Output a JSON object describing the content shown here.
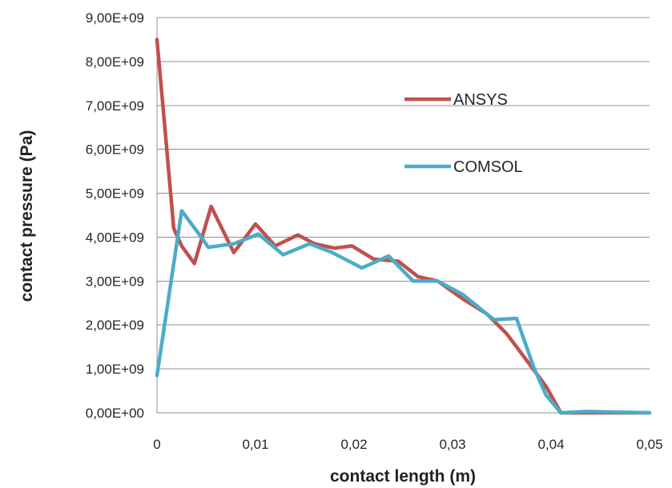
{
  "chart_data": {
    "type": "line",
    "title": "",
    "xlabel": "contact length (m)",
    "ylabel": "contact pressure (Pa)",
    "xlim": [
      0,
      0.05
    ],
    "ylim": [
      0,
      9000000000
    ],
    "x_ticks": [
      0,
      0.01,
      0.02,
      0.03,
      0.04,
      0.05
    ],
    "x_tick_labels": [
      "0",
      "0,01",
      "0,02",
      "0,03",
      "0,04",
      "0,05"
    ],
    "y_ticks": [
      0,
      1000000000,
      2000000000,
      3000000000,
      4000000000,
      5000000000,
      6000000000,
      7000000000,
      8000000000,
      9000000000
    ],
    "y_tick_labels": [
      "0,00E+00",
      "1,00E+09",
      "2,00E+09",
      "3,00E+09",
      "4,00E+09",
      "5,00E+09",
      "6,00E+09",
      "7,00E+09",
      "8,00E+09",
      "9,00E+09"
    ],
    "grid": true,
    "legend_position": "right",
    "series": [
      {
        "name": "ANSYS",
        "color": "#c0504d",
        "points": [
          [
            0.0,
            8500000000
          ],
          [
            0.0008,
            6500000000
          ],
          [
            0.0017,
            4200000000
          ],
          [
            0.0025,
            3800000000
          ],
          [
            0.0038,
            3400000000
          ],
          [
            0.0055,
            4700000000
          ],
          [
            0.0078,
            3650000000
          ],
          [
            0.01,
            4300000000
          ],
          [
            0.012,
            3800000000
          ],
          [
            0.0143,
            4050000000
          ],
          [
            0.016,
            3850000000
          ],
          [
            0.018,
            3750000000
          ],
          [
            0.0198,
            3800000000
          ],
          [
            0.022,
            3500000000
          ],
          [
            0.0245,
            3450000000
          ],
          [
            0.0265,
            3100000000
          ],
          [
            0.0285,
            3000000000
          ],
          [
            0.031,
            2600000000
          ],
          [
            0.0335,
            2250000000
          ],
          [
            0.0355,
            1800000000
          ],
          [
            0.0375,
            1200000000
          ],
          [
            0.0395,
            600000000
          ],
          [
            0.041,
            0
          ],
          [
            0.045,
            0
          ],
          [
            0.05,
            0
          ]
        ]
      },
      {
        "name": "COMSOL",
        "color": "#4bacc6",
        "points": [
          [
            0.0,
            850000000
          ],
          [
            0.0025,
            4600000000
          ],
          [
            0.0045,
            4000000000
          ],
          [
            0.0052,
            3770000000
          ],
          [
            0.0078,
            3850000000
          ],
          [
            0.0103,
            4070000000
          ],
          [
            0.0128,
            3600000000
          ],
          [
            0.0155,
            3850000000
          ],
          [
            0.0178,
            3650000000
          ],
          [
            0.0208,
            3300000000
          ],
          [
            0.0235,
            3570000000
          ],
          [
            0.026,
            3000000000
          ],
          [
            0.0285,
            3000000000
          ],
          [
            0.031,
            2700000000
          ],
          [
            0.0342,
            2120000000
          ],
          [
            0.0365,
            2150000000
          ],
          [
            0.0383,
            1000000000
          ],
          [
            0.0395,
            400000000
          ],
          [
            0.041,
            0
          ],
          [
            0.0435,
            30000000
          ],
          [
            0.05,
            0
          ]
        ]
      }
    ]
  }
}
